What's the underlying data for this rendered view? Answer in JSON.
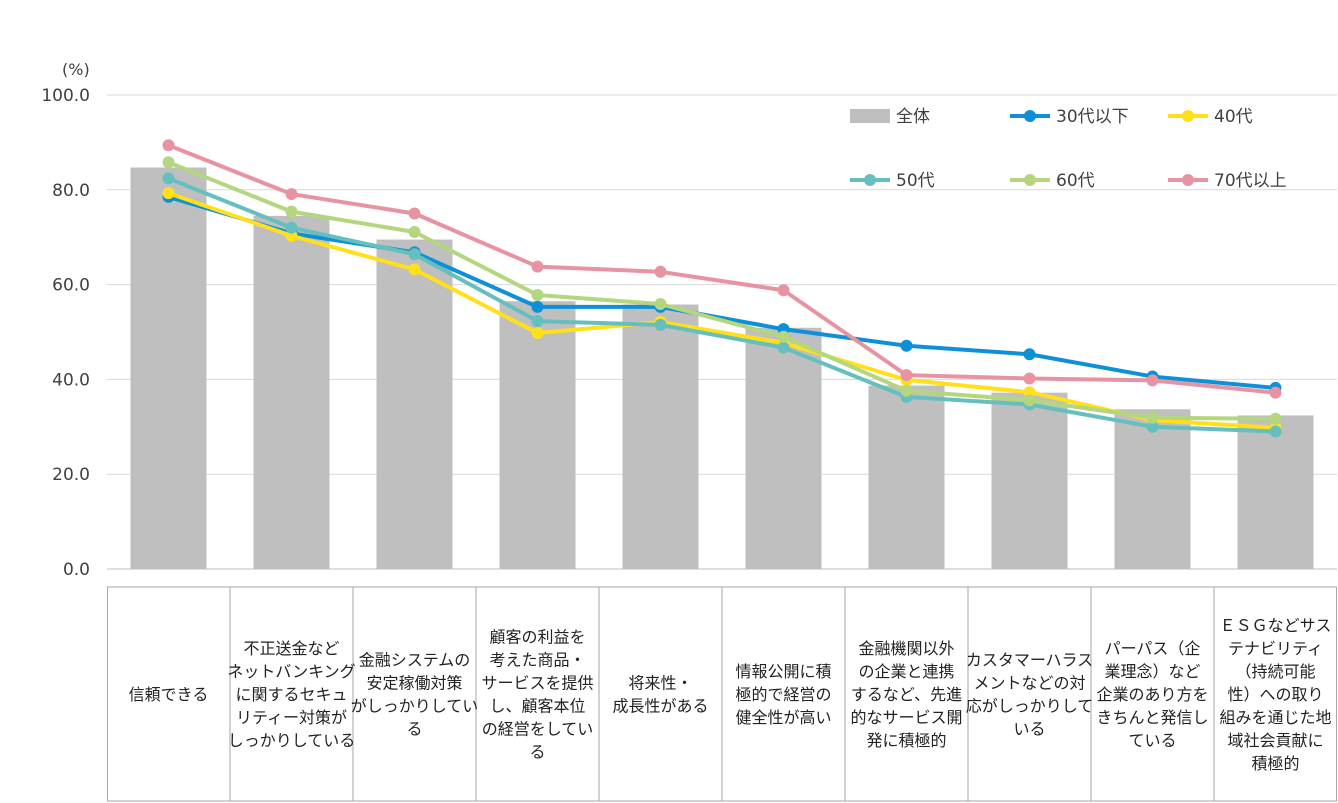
{
  "chart_data": {
    "type": "bar",
    "unit": "(%)",
    "ylim": [
      0,
      100
    ],
    "yticks": [
      "0.0",
      "20.0",
      "40.0",
      "60.0",
      "80.0",
      "100.0"
    ],
    "grid": true,
    "legend_position": "top-right",
    "categories": [
      [
        "信頼できる"
      ],
      [
        "不正送金など",
        "ネットバンキング",
        "に関するセキュ",
        "リティー対策が",
        "しっかりしている"
      ],
      [
        "金融システムの",
        "安定稼働対策",
        "がしっかりしてい",
        "る"
      ],
      [
        "顧客の利益を",
        "考えた商品・",
        "サービスを提供",
        "し、顧客本位",
        "の経営をしてい",
        "る"
      ],
      [
        "将来性・",
        "成長性がある"
      ],
      [
        "情報公開に積",
        "極的で経営の",
        "健全性が高い"
      ],
      [
        "金融機関以外",
        "の企業と連携",
        "するなど、先進",
        "的なサービス開",
        "発に積極的"
      ],
      [
        "カスタマーハラス",
        "メントなどの対",
        "応がしっかりして",
        "いる"
      ],
      [
        "パーパス（企",
        "業理念）など",
        "企業のあり方を",
        "きちんと発信し",
        "ている"
      ],
      [
        "ＥＳＧなどサス",
        "テナビリティ",
        "（持続可能",
        "性）への取り",
        "組みを通じた地",
        "域社会貢献に",
        "積極的"
      ]
    ],
    "bar_series": {
      "name": "全体",
      "color": "#bfbfbf",
      "values": [
        84.7,
        74.5,
        69.5,
        56.5,
        55.8,
        50.9,
        38.7,
        37.2,
        33.7,
        32.4
      ]
    },
    "series": [
      {
        "name": "30代以下",
        "color": "#0e90d8",
        "values": [
          78.5,
          70.8,
          66.8,
          55.3,
          55.3,
          50.6,
          47.1,
          45.3,
          40.6,
          38.2
        ]
      },
      {
        "name": "40代",
        "color": "#ffe01a",
        "values": [
          79.3,
          70.3,
          63.2,
          49.8,
          52.1,
          47.7,
          39.9,
          37.3,
          31.4,
          29.8
        ]
      },
      {
        "name": "50代",
        "color": "#66bfbf",
        "values": [
          82.4,
          72.0,
          66.4,
          52.3,
          51.5,
          46.7,
          36.3,
          34.7,
          30.0,
          29.0
        ]
      },
      {
        "name": "60代",
        "color": "#b3d67f",
        "values": [
          85.8,
          75.4,
          71.1,
          57.8,
          55.9,
          49.0,
          37.6,
          35.6,
          31.9,
          31.7
        ]
      },
      {
        "name": "70代以上",
        "color": "#e893a2",
        "values": [
          89.4,
          79.1,
          75.0,
          63.8,
          62.7,
          58.8,
          40.9,
          40.2,
          39.8,
          37.2
        ]
      }
    ]
  }
}
